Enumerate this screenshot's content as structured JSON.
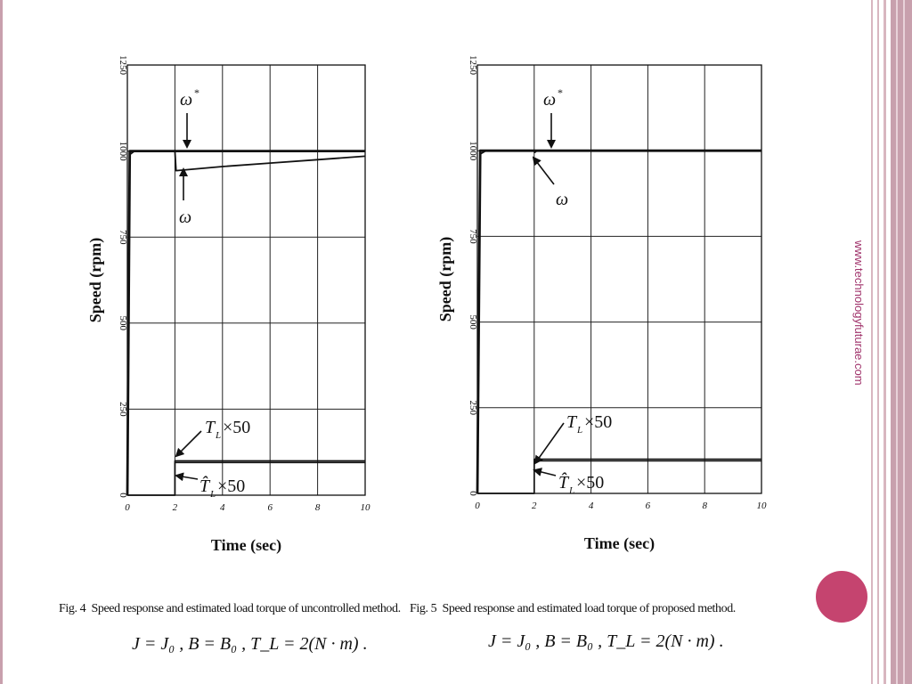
{
  "side_url": "www.technologyfuturae.com",
  "colors": {
    "accent": "#c5446f",
    "url_text": "#a0336b",
    "stripe": "#c8a0ad",
    "ink": "#111111"
  },
  "chart_data": [
    {
      "type": "line",
      "ylabel": "Speed (rpm)",
      "xlabel": "Time (sec)",
      "xlim": [
        0,
        10
      ],
      "ylim": [
        0,
        1250
      ],
      "x_ticks": [
        "0",
        "2",
        "4",
        "6",
        "8",
        "10"
      ],
      "y_ticks": [
        "0",
        "250",
        "500",
        "750",
        "1000",
        "1250"
      ],
      "grid": true,
      "series": [
        {
          "label": "ω*",
          "x": [
            0,
            0.1,
            0.3,
            10
          ],
          "y": [
            0,
            1000,
            1000,
            1000
          ]
        },
        {
          "label": "ω",
          "x": [
            0,
            0.1,
            0.3,
            2.0,
            2.05,
            4,
            6,
            8,
            10
          ],
          "y": [
            0,
            990,
            1000,
            1000,
            943,
            955,
            965,
            975,
            985
          ]
        },
        {
          "label": "T_L×50",
          "x": [
            0,
            2.0,
            2.0,
            10
          ],
          "y": [
            0,
            0,
            100,
            100
          ]
        },
        {
          "label": "T̂_L×50",
          "x": [
            0,
            2.0,
            2.0,
            10
          ],
          "y": [
            0,
            0,
            95,
            95
          ]
        }
      ],
      "annotations": {
        "w_star": "ω",
        "w_star_sup": "*",
        "w": "ω",
        "tl": "T",
        "tl_sub": "L",
        "tl_suffix": "×50",
        "tlhat": "T̂",
        "tlhat_sub": "L",
        "tlhat_suffix": "×50"
      },
      "caption": {
        "fig": "Fig. 4",
        "text": "Speed response and estimated load torque of uncontrolled method.",
        "equation": "J = J₀ , B = B₀ , T_L = 2(N · m) ."
      }
    },
    {
      "type": "line",
      "ylabel": "Speed (rpm)",
      "xlabel": "Time (sec)",
      "xlim": [
        0,
        10
      ],
      "ylim": [
        0,
        1250
      ],
      "x_ticks": [
        "0",
        "2",
        "4",
        "6",
        "8",
        "10"
      ],
      "y_ticks": [
        "0",
        "250",
        "500",
        "750",
        "1000",
        "1250"
      ],
      "grid": true,
      "series": [
        {
          "label": "ω*",
          "x": [
            0,
            0.1,
            0.3,
            10
          ],
          "y": [
            0,
            1000,
            1000,
            1000
          ]
        },
        {
          "label": "ω",
          "x": [
            0,
            0.1,
            0.3,
            2.0,
            2.02,
            2.1,
            10
          ],
          "y": [
            0,
            990,
            1000,
            1000,
            995,
            1000,
            1000
          ]
        },
        {
          "label": "T_L×50",
          "x": [
            0,
            2.0,
            2.0,
            10
          ],
          "y": [
            0,
            0,
            100,
            100
          ]
        },
        {
          "label": "T̂_L×50",
          "x": [
            0,
            2.0,
            2.0,
            10
          ],
          "y": [
            0,
            0,
            95,
            95
          ]
        }
      ],
      "annotations": {
        "w_star": "ω",
        "w_star_sup": "*",
        "w": "ω",
        "tl": "T",
        "tl_sub": "L",
        "tl_suffix": "×50",
        "tlhat": "T̂",
        "tlhat_sub": "L",
        "tlhat_suffix": "×50"
      },
      "caption": {
        "fig": "Fig. 5",
        "text": "Speed response and estimated load torque of proposed method.",
        "equation": "J = J₀ , B = B₀ , T_L = 2(N · m) ."
      }
    }
  ]
}
